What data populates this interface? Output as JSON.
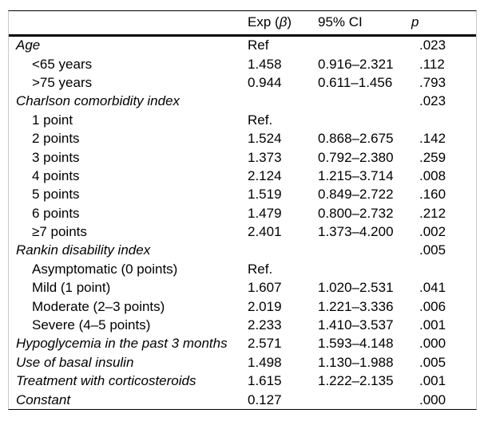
{
  "header": {
    "exp_prefix": "Exp (",
    "exp_beta": "β",
    "exp_suffix": ")",
    "ci": "95% CI",
    "p": "p"
  },
  "rows": [
    {
      "label": "Age",
      "type": "category",
      "exp": "Ref",
      "ci": "",
      "p": ".023"
    },
    {
      "label": "<65 years",
      "type": "sub",
      "exp": "1.458",
      "ci": "0.916–2.321",
      "p": ".112"
    },
    {
      "label": ">75 years",
      "type": "sub",
      "exp": "0.944",
      "ci": "0.611–1.456",
      "p": ".793"
    },
    {
      "label": "Charlson comorbidity index",
      "type": "category",
      "exp": "",
      "ci": "",
      "p": ".023"
    },
    {
      "label": "1 point",
      "type": "sub",
      "exp": "Ref.",
      "ci": "",
      "p": ""
    },
    {
      "label": "2 points",
      "type": "sub",
      "exp": "1.524",
      "ci": "0.868–2.675",
      "p": ".142"
    },
    {
      "label": "3 points",
      "type": "sub",
      "exp": "1.373",
      "ci": "0.792–2.380",
      "p": ".259"
    },
    {
      "label": "4 points",
      "type": "sub",
      "exp": "2.124",
      "ci": "1.215–3.714",
      "p": ".008"
    },
    {
      "label": "5 points",
      "type": "sub",
      "exp": "1.519",
      "ci": "0.849–2.722",
      "p": ".160"
    },
    {
      "label": "6 points",
      "type": "sub",
      "exp": "1.479",
      "ci": "0.800–2.732",
      "p": ".212"
    },
    {
      "label": "≥7 points",
      "type": "sub",
      "exp": "2.401",
      "ci": "1.373–4.200",
      "p": ".002"
    },
    {
      "label": "Rankin disability index",
      "type": "category",
      "exp": "",
      "ci": "",
      "p": ".005"
    },
    {
      "label": "Asymptomatic (0 points)",
      "type": "sub",
      "exp": "Ref.",
      "ci": "",
      "p": ""
    },
    {
      "label": "Mild (1 point)",
      "type": "sub",
      "exp": "1.607",
      "ci": "1.020–2.531",
      "p": ".041"
    },
    {
      "label": "Moderate (2–3 points)",
      "type": "sub",
      "exp": "2.019",
      "ci": "1.221–3.336",
      "p": ".006"
    },
    {
      "label": "Severe (4–5 points)",
      "type": "sub",
      "exp": "2.233",
      "ci": "1.410–3.537",
      "p": ".001"
    },
    {
      "label": "Hypoglycemia in the past 3 months",
      "type": "category",
      "exp": "2.571",
      "ci": "1.593–4.148",
      "p": ".000"
    },
    {
      "label": "Use of basal insulin",
      "type": "category",
      "exp": "1.498",
      "ci": "1.130–1.988",
      "p": ".005"
    },
    {
      "label": "Treatment with corticosteroids",
      "type": "category",
      "exp": "1.615",
      "ci": "1.222–2.135",
      "p": ".001"
    },
    {
      "label": "Constant",
      "type": "category",
      "exp": "0.127",
      "ci": "",
      "p": ".000"
    }
  ]
}
